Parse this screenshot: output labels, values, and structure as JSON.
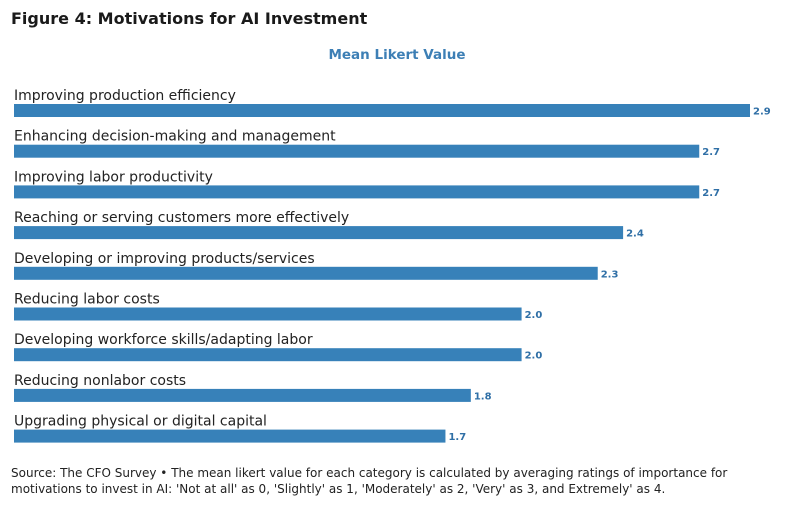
{
  "figure_title": "Figure 4: Motivations for AI Investment",
  "source_note": "Source: The CFO Survey • The mean likert value for each category is calculated by averaging ratings of importance for motivations to invest in AI: 'Not at all' as 0, 'Slightly' as 1, 'Moderately' as 2, 'Very' as 3, and Extremely' as 4.",
  "colors": {
    "bar": "#3781b9",
    "value_label": "#2f6fa6",
    "axis_title": "#3d7fb5"
  },
  "chart_data": {
    "type": "bar",
    "orientation": "horizontal",
    "title": "Mean Likert Value",
    "categories": [
      "Improving production efficiency",
      "Enhancing decision-making and management",
      "Improving labor productivity",
      "Reaching or serving customers more effectively",
      "Developing or improving products/services",
      "Reducing labor costs",
      "Developing workforce skills/adapting labor",
      "Reducing nonlabor costs",
      "Upgrading physical or digital capital"
    ],
    "values": [
      2.9,
      2.7,
      2.7,
      2.4,
      2.3,
      2.0,
      2.0,
      1.8,
      1.7
    ],
    "value_labels": [
      "2.9",
      "2.7",
      "2.7",
      "2.4",
      "2.3",
      "2.0",
      "2.0",
      "1.8",
      "1.7"
    ],
    "xlim": [
      0,
      2.9
    ],
    "grid": false,
    "legend": "none"
  }
}
